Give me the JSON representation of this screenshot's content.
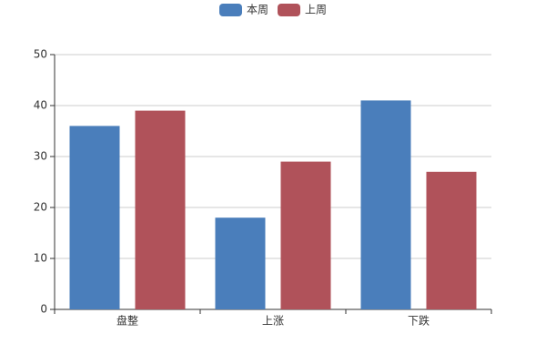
{
  "chart_data": {
    "type": "bar",
    "categories": [
      "盘整",
      "上涨",
      "下跌"
    ],
    "series": [
      {
        "name": "本周",
        "color": "#4a7ebb",
        "values": [
          36,
          18,
          41
        ]
      },
      {
        "name": "上周",
        "color": "#b0525a",
        "values": [
          39,
          29,
          27
        ]
      }
    ],
    "ylim": [
      0,
      50
    ],
    "yticks": [
      0,
      10,
      20,
      30,
      40,
      50
    ],
    "grid": true,
    "legend": "top"
  }
}
